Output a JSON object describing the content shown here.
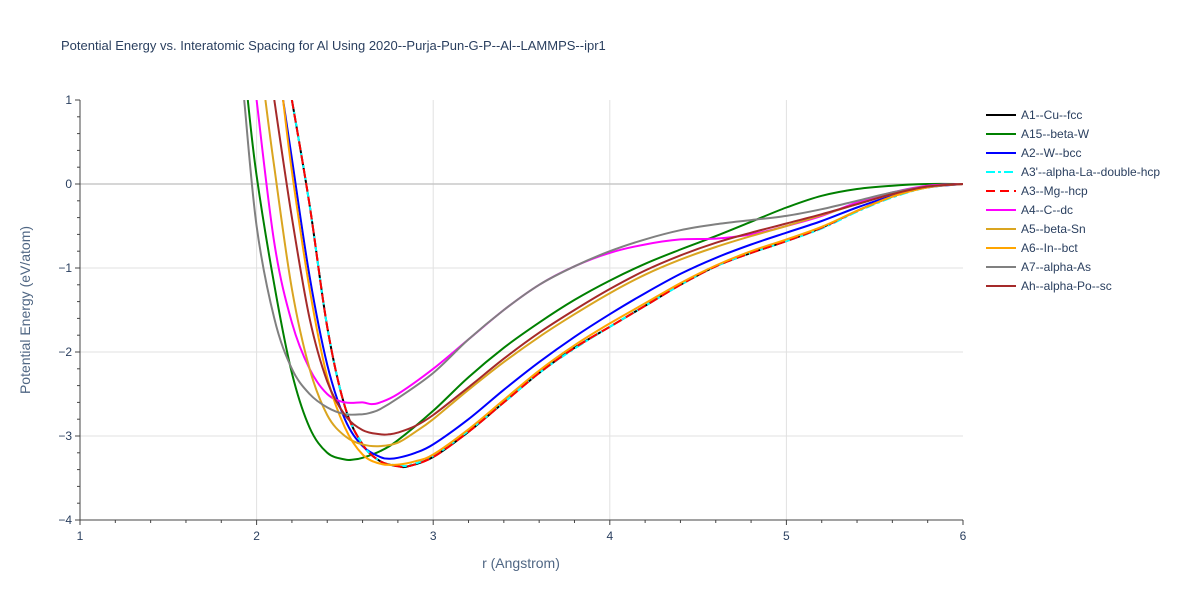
{
  "chart_data": {
    "type": "line",
    "title": "Potential Energy vs. Interatomic Spacing for Al Using 2020--Purja-Pun-G-P--Al--LAMMPS--ipr1",
    "xlabel": "r (Angstrom)",
    "ylabel": "Potential Energy (eV/atom)",
    "xlim": [
      1,
      6
    ],
    "ylim": [
      -4,
      1
    ],
    "xticks": [
      1,
      2,
      3,
      4,
      5,
      6
    ],
    "xtick_labels": [
      "1",
      "2",
      "3",
      "4",
      "5",
      "6"
    ],
    "yticks": [
      1,
      0,
      -1,
      -2,
      -3,
      -4
    ],
    "ytick_labels": [
      "1",
      "0",
      "−1",
      "−2",
      "−3",
      "−4"
    ],
    "grid": true,
    "legend_position": "right",
    "series": [
      {
        "name": "A1--Cu--fcc",
        "color": "#000000",
        "dash": "solid",
        "x": [
          2.2,
          2.3,
          2.4,
          2.5,
          2.6,
          2.7,
          2.8,
          2.86,
          3.0,
          3.2,
          3.4,
          3.6,
          3.8,
          4.0,
          4.2,
          4.4,
          4.6,
          4.8,
          5.0,
          5.2,
          5.4,
          5.6,
          5.8,
          6.0
        ],
        "y": [
          1.0,
          -0.25,
          -1.7,
          -2.65,
          -3.1,
          -3.3,
          -3.36,
          -3.36,
          -3.25,
          -2.95,
          -2.6,
          -2.25,
          -1.95,
          -1.7,
          -1.45,
          -1.2,
          -0.98,
          -0.82,
          -0.68,
          -0.52,
          -0.32,
          -0.15,
          -0.03,
          0.0
        ]
      },
      {
        "name": "A15--beta-W",
        "color": "#008000",
        "dash": "solid",
        "x": [
          1.95,
          2.0,
          2.1,
          2.2,
          2.3,
          2.4,
          2.5,
          2.55,
          2.6,
          2.7,
          2.8,
          3.0,
          3.2,
          3.4,
          3.6,
          3.8,
          4.0,
          4.2,
          4.4,
          4.6,
          4.8,
          5.0,
          5.2,
          5.4,
          5.6,
          5.8,
          6.0
        ],
        "y": [
          1.0,
          0.1,
          -1.2,
          -2.25,
          -2.9,
          -3.2,
          -3.28,
          -3.28,
          -3.26,
          -3.18,
          -3.05,
          -2.7,
          -2.3,
          -1.95,
          -1.65,
          -1.38,
          -1.15,
          -0.95,
          -0.78,
          -0.62,
          -0.45,
          -0.28,
          -0.14,
          -0.06,
          -0.02,
          0.0,
          0.0
        ]
      },
      {
        "name": "A2--W--bcc",
        "color": "#0000ff",
        "dash": "solid",
        "x": [
          2.15,
          2.2,
          2.3,
          2.4,
          2.5,
          2.6,
          2.7,
          2.75,
          2.8,
          2.9,
          3.0,
          3.2,
          3.4,
          3.6,
          3.8,
          4.0,
          4.2,
          4.4,
          4.6,
          4.8,
          5.0,
          5.2,
          5.4,
          5.6,
          5.8,
          6.0
        ],
        "y": [
          1.0,
          0.3,
          -1.1,
          -2.15,
          -2.8,
          -3.12,
          -3.25,
          -3.27,
          -3.26,
          -3.2,
          -3.1,
          -2.8,
          -2.45,
          -2.12,
          -1.82,
          -1.55,
          -1.3,
          -1.07,
          -0.88,
          -0.72,
          -0.58,
          -0.44,
          -0.28,
          -0.14,
          -0.04,
          0.0
        ]
      },
      {
        "name": "A3'--alpha-La--double-hcp",
        "color": "#00ffff",
        "dash": "dashdot",
        "x": [
          2.2,
          2.3,
          2.4,
          2.5,
          2.6,
          2.7,
          2.8,
          2.86,
          3.0,
          3.2,
          3.4,
          3.6,
          3.8,
          4.0,
          4.2,
          4.4,
          4.6,
          4.8,
          5.0,
          5.2,
          5.4,
          5.6,
          5.8,
          6.0
        ],
        "y": [
          1.0,
          -0.25,
          -1.7,
          -2.65,
          -3.1,
          -3.3,
          -3.35,
          -3.35,
          -3.24,
          -2.94,
          -2.6,
          -2.25,
          -1.96,
          -1.7,
          -1.45,
          -1.2,
          -0.98,
          -0.82,
          -0.68,
          -0.53,
          -0.33,
          -0.16,
          -0.04,
          0.0
        ]
      },
      {
        "name": "A3--Mg--hcp",
        "color": "#ff0000",
        "dash": "dash",
        "x": [
          2.2,
          2.3,
          2.4,
          2.5,
          2.6,
          2.7,
          2.8,
          2.86,
          3.0,
          3.2,
          3.4,
          3.6,
          3.8,
          4.0,
          4.2,
          4.4,
          4.6,
          4.8,
          5.0,
          5.2,
          5.4,
          5.6,
          5.8,
          6.0
        ],
        "y": [
          1.0,
          -0.25,
          -1.7,
          -2.65,
          -3.1,
          -3.3,
          -3.36,
          -3.36,
          -3.25,
          -2.95,
          -2.6,
          -2.25,
          -1.95,
          -1.7,
          -1.45,
          -1.2,
          -0.98,
          -0.82,
          -0.68,
          -0.52,
          -0.32,
          -0.15,
          -0.03,
          0.0
        ]
      },
      {
        "name": "A4--C--dc",
        "color": "#ff00ff",
        "dash": "solid",
        "x": [
          2.0,
          2.1,
          2.2,
          2.3,
          2.4,
          2.5,
          2.6,
          2.65,
          2.7,
          2.8,
          3.0,
          3.2,
          3.4,
          3.6,
          3.8,
          4.0,
          4.2,
          4.4,
          4.6,
          4.8,
          5.0,
          5.2,
          5.4,
          5.6,
          5.8,
          6.0
        ],
        "y": [
          1.0,
          -0.7,
          -1.65,
          -2.2,
          -2.5,
          -2.6,
          -2.6,
          -2.62,
          -2.6,
          -2.5,
          -2.2,
          -1.85,
          -1.5,
          -1.2,
          -0.98,
          -0.82,
          -0.72,
          -0.66,
          -0.65,
          -0.6,
          -0.5,
          -0.38,
          -0.22,
          -0.1,
          -0.02,
          0.0
        ]
      },
      {
        "name": "A5--beta-Sn",
        "color": "#DAA520",
        "dash": "solid",
        "x": [
          2.05,
          2.1,
          2.2,
          2.3,
          2.4,
          2.5,
          2.6,
          2.7,
          2.8,
          2.9,
          3.0,
          3.2,
          3.4,
          3.6,
          3.8,
          4.0,
          4.2,
          4.4,
          4.6,
          4.8,
          5.0,
          5.2,
          5.4,
          5.6,
          5.8,
          6.0
        ],
        "y": [
          1.0,
          0.2,
          -1.25,
          -2.2,
          -2.75,
          -3.0,
          -3.1,
          -3.12,
          -3.08,
          -2.95,
          -2.8,
          -2.45,
          -2.12,
          -1.82,
          -1.55,
          -1.3,
          -1.08,
          -0.9,
          -0.75,
          -0.62,
          -0.5,
          -0.37,
          -0.24,
          -0.12,
          -0.03,
          0.0
        ]
      },
      {
        "name": "A6--In--bct",
        "color": "#FFA500",
        "dash": "solid",
        "x": [
          2.15,
          2.2,
          2.3,
          2.4,
          2.5,
          2.6,
          2.7,
          2.8,
          2.9,
          3.0,
          3.2,
          3.4,
          3.6,
          3.8,
          4.0,
          4.2,
          4.4,
          4.6,
          4.8,
          5.0,
          5.2,
          5.4,
          5.6,
          5.8,
          6.0
        ],
        "y": [
          1.0,
          0.15,
          -1.25,
          -2.3,
          -2.9,
          -3.22,
          -3.33,
          -3.34,
          -3.3,
          -3.22,
          -2.92,
          -2.57,
          -2.22,
          -1.92,
          -1.66,
          -1.42,
          -1.18,
          -0.97,
          -0.8,
          -0.66,
          -0.51,
          -0.32,
          -0.15,
          -0.04,
          0.0
        ]
      },
      {
        "name": "A7--alpha-As",
        "color": "#808080",
        "dash": "solid",
        "x": [
          1.93,
          2.0,
          2.1,
          2.2,
          2.3,
          2.4,
          2.5,
          2.6,
          2.65,
          2.7,
          2.8,
          3.0,
          3.2,
          3.4,
          3.6,
          3.8,
          4.0,
          4.2,
          4.4,
          4.6,
          4.8,
          5.0,
          5.2,
          5.4,
          5.6,
          5.8,
          6.0
        ],
        "y": [
          1.0,
          -0.5,
          -1.6,
          -2.2,
          -2.5,
          -2.66,
          -2.74,
          -2.74,
          -2.72,
          -2.68,
          -2.55,
          -2.25,
          -1.85,
          -1.5,
          -1.2,
          -0.98,
          -0.8,
          -0.66,
          -0.55,
          -0.48,
          -0.43,
          -0.38,
          -0.3,
          -0.2,
          -0.1,
          -0.03,
          0.0
        ]
      },
      {
        "name": "Ah--alpha-Po--sc",
        "color": "#A52A2A",
        "dash": "solid",
        "x": [
          2.1,
          2.2,
          2.3,
          2.4,
          2.5,
          2.6,
          2.7,
          2.75,
          2.8,
          2.9,
          3.0,
          3.2,
          3.4,
          3.6,
          3.8,
          4.0,
          4.2,
          4.4,
          4.6,
          4.8,
          5.0,
          5.2,
          5.4,
          5.6,
          5.8,
          6.0
        ],
        "y": [
          1.0,
          -0.4,
          -1.6,
          -2.35,
          -2.75,
          -2.93,
          -2.98,
          -2.98,
          -2.96,
          -2.88,
          -2.75,
          -2.42,
          -2.08,
          -1.77,
          -1.5,
          -1.25,
          -1.03,
          -0.85,
          -0.7,
          -0.58,
          -0.47,
          -0.36,
          -0.24,
          -0.12,
          -0.03,
          0.0
        ]
      }
    ]
  }
}
